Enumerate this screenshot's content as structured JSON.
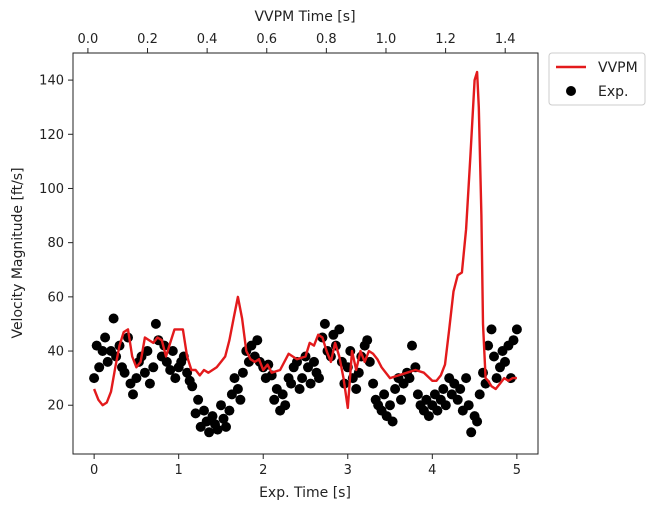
{
  "chart_data": {
    "type": "line",
    "xlabel": "Exp. Time [s]",
    "x2label": "VVPM Time [s]",
    "ylabel": "Velocity Magnitude [ft/s]",
    "xlim": [
      -0.25,
      5.25
    ],
    "ylim": [
      2,
      150
    ],
    "x2lim": [
      -0.05,
      1.51
    ],
    "xticks": [
      0,
      1,
      2,
      3,
      4,
      5
    ],
    "yticks": [
      20,
      40,
      60,
      80,
      100,
      120,
      140
    ],
    "x2ticks": [
      0.0,
      0.2,
      0.4,
      0.6,
      0.8,
      1.0,
      1.2,
      1.4
    ],
    "x2tick_labels": [
      "0.0",
      "0.2",
      "0.4",
      "0.6",
      "0.8",
      "1.0",
      "1.2",
      "1.4"
    ],
    "legend_position": "outside-top-right",
    "colors": {
      "vvpm": "#e31a1c",
      "exp": "#000000"
    },
    "series": [
      {
        "name": "VVPM",
        "type": "line",
        "x": [
          0.0,
          0.05,
          0.1,
          0.15,
          0.2,
          0.25,
          0.3,
          0.35,
          0.4,
          0.45,
          0.5,
          0.55,
          0.6,
          0.65,
          0.7,
          0.75,
          0.8,
          0.85,
          0.9,
          0.95,
          1.0,
          1.05,
          1.1,
          1.15,
          1.2,
          1.25,
          1.3,
          1.35,
          1.4,
          1.45,
          1.5,
          1.55,
          1.6,
          1.65,
          1.7,
          1.75,
          1.8,
          1.85,
          1.9,
          1.95,
          2.0,
          2.05,
          2.1,
          2.2,
          2.3,
          2.4,
          2.5,
          2.55,
          2.6,
          2.65,
          2.7,
          2.75,
          2.8,
          2.85,
          2.9,
          2.95,
          3.0,
          3.05,
          3.1,
          3.15,
          3.2,
          3.25,
          3.3,
          3.35,
          3.4,
          3.5,
          3.6,
          3.7,
          3.8,
          3.9,
          4.0,
          4.05,
          4.1,
          4.15,
          4.2,
          4.25,
          4.3,
          4.35,
          4.4,
          4.45,
          4.5,
          4.53,
          4.55,
          4.58,
          4.6,
          4.63,
          4.66,
          4.7,
          4.75,
          4.8,
          4.85,
          4.9,
          4.95,
          5.0
        ],
        "y": [
          26,
          22,
          20,
          21,
          25,
          34,
          42,
          47,
          48,
          38,
          34,
          36,
          45,
          44,
          43,
          45,
          44,
          38,
          43,
          48,
          48,
          48,
          38,
          33,
          33,
          31,
          33,
          32,
          33,
          34,
          36,
          38,
          44,
          52,
          60,
          52,
          40,
          37,
          36,
          37,
          33,
          35,
          32,
          33,
          39,
          37,
          38,
          43,
          42,
          46,
          45,
          40,
          36,
          43,
          38,
          30,
          19,
          40,
          33,
          40,
          36,
          40,
          39,
          37,
          34,
          30,
          31,
          32,
          33,
          32,
          29,
          29,
          31,
          35,
          48,
          62,
          68,
          69,
          85,
          112,
          140,
          143,
          130,
          90,
          50,
          30,
          29,
          27,
          26,
          28,
          30,
          29,
          30,
          30
        ]
      },
      {
        "name": "Exp.",
        "type": "scatter",
        "x": [
          0.0,
          0.03,
          0.06,
          0.1,
          0.13,
          0.16,
          0.2,
          0.23,
          0.26,
          0.3,
          0.33,
          0.36,
          0.4,
          0.43,
          0.46,
          0.5,
          0.53,
          0.56,
          0.6,
          0.63,
          0.66,
          0.7,
          0.73,
          0.76,
          0.8,
          0.83,
          0.86,
          0.9,
          0.93,
          0.96,
          1.0,
          1.03,
          1.06,
          1.1,
          1.13,
          1.16,
          1.2,
          1.23,
          1.26,
          1.3,
          1.33,
          1.36,
          1.4,
          1.43,
          1.46,
          1.5,
          1.53,
          1.56,
          1.6,
          1.63,
          1.66,
          1.7,
          1.73,
          1.76,
          1.8,
          1.83,
          1.86,
          1.9,
          1.93,
          1.96,
          2.0,
          2.03,
          2.06,
          2.1,
          2.13,
          2.16,
          2.2,
          2.23,
          2.26,
          2.3,
          2.33,
          2.36,
          2.4,
          2.43,
          2.46,
          2.5,
          2.53,
          2.56,
          2.6,
          2.63,
          2.66,
          2.7,
          2.73,
          2.76,
          2.8,
          2.83,
          2.86,
          2.9,
          2.93,
          2.96,
          3.0,
          3.03,
          3.06,
          3.1,
          3.13,
          3.16,
          3.2,
          3.23,
          3.26,
          3.3,
          3.33,
          3.36,
          3.4,
          3.43,
          3.46,
          3.5,
          3.53,
          3.56,
          3.6,
          3.63,
          3.66,
          3.7,
          3.73,
          3.76,
          3.8,
          3.83,
          3.86,
          3.9,
          3.93,
          3.96,
          4.0,
          4.03,
          4.06,
          4.1,
          4.13,
          4.16,
          4.2,
          4.23,
          4.26,
          4.3,
          4.33,
          4.36,
          4.4,
          4.43,
          4.46,
          4.5,
          4.53,
          4.56,
          4.6,
          4.63,
          4.66,
          4.7,
          4.73,
          4.76,
          4.8,
          4.83,
          4.86,
          4.9,
          4.93,
          4.96,
          5.0
        ],
        "y": [
          30,
          42,
          34,
          40,
          45,
          36,
          40,
          52,
          38,
          42,
          34,
          32,
          45,
          28,
          24,
          30,
          36,
          38,
          32,
          40,
          28,
          34,
          50,
          44,
          38,
          42,
          36,
          33,
          40,
          30,
          34,
          36,
          38,
          32,
          29,
          27,
          17,
          22,
          12,
          18,
          14,
          10,
          16,
          13,
          11,
          20,
          15,
          12,
          18,
          24,
          30,
          26,
          22,
          32,
          40,
          36,
          42,
          38,
          44,
          36,
          34,
          30,
          35,
          31,
          22,
          26,
          18,
          24,
          20,
          30,
          28,
          34,
          36,
          26,
          30,
          38,
          34,
          28,
          36,
          32,
          30,
          45,
          50,
          40,
          38,
          46,
          42,
          48,
          36,
          28,
          34,
          40,
          30,
          26,
          32,
          38,
          42,
          44,
          36,
          28,
          22,
          20,
          18,
          24,
          16,
          20,
          14,
          26,
          30,
          22,
          28,
          32,
          30,
          42,
          34,
          24,
          20,
          18,
          22,
          16,
          20,
          24,
          18,
          22,
          26,
          20,
          30,
          24,
          28,
          22,
          26,
          18,
          30,
          20,
          10,
          16,
          14,
          24,
          32,
          28,
          42,
          48,
          38,
          30,
          34,
          40,
          36,
          42,
          30,
          44,
          48
        ]
      }
    ]
  }
}
